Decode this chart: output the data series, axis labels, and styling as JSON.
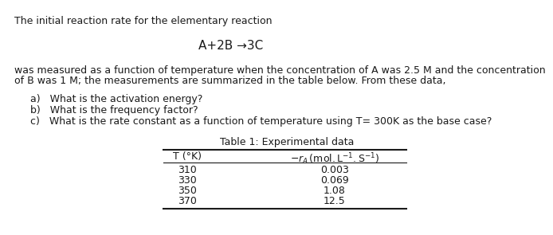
{
  "title_line1": "The initial reaction rate for the elementary reaction",
  "reaction": "A+2B →3C",
  "body_text1": "was measured as a function of temperature when the concentration of A was 2.5 M and the concentration",
  "body_text2": "of B was 1 M; the measurements are summarized in the table below. From these data,",
  "q_a": "a)   What is the activation energy?",
  "q_b": "b)   What is the frequency factor?",
  "q_c": "c)   What is the rate constant as a function of temperature using T= 300K as the base case?",
  "table_title": "Table 1: Experimental data",
  "col1_header": "T (°K)",
  "table_data": [
    [
      "310",
      "0.003"
    ],
    [
      "330",
      "0.069"
    ],
    [
      "350",
      "1.08"
    ],
    [
      "370",
      "12.5"
    ]
  ],
  "bg_color": "#ffffff",
  "text_color": "#1a1a1a",
  "font_size_body": 9.0,
  "font_size_reaction": 11.0,
  "font_size_table": 9.0
}
